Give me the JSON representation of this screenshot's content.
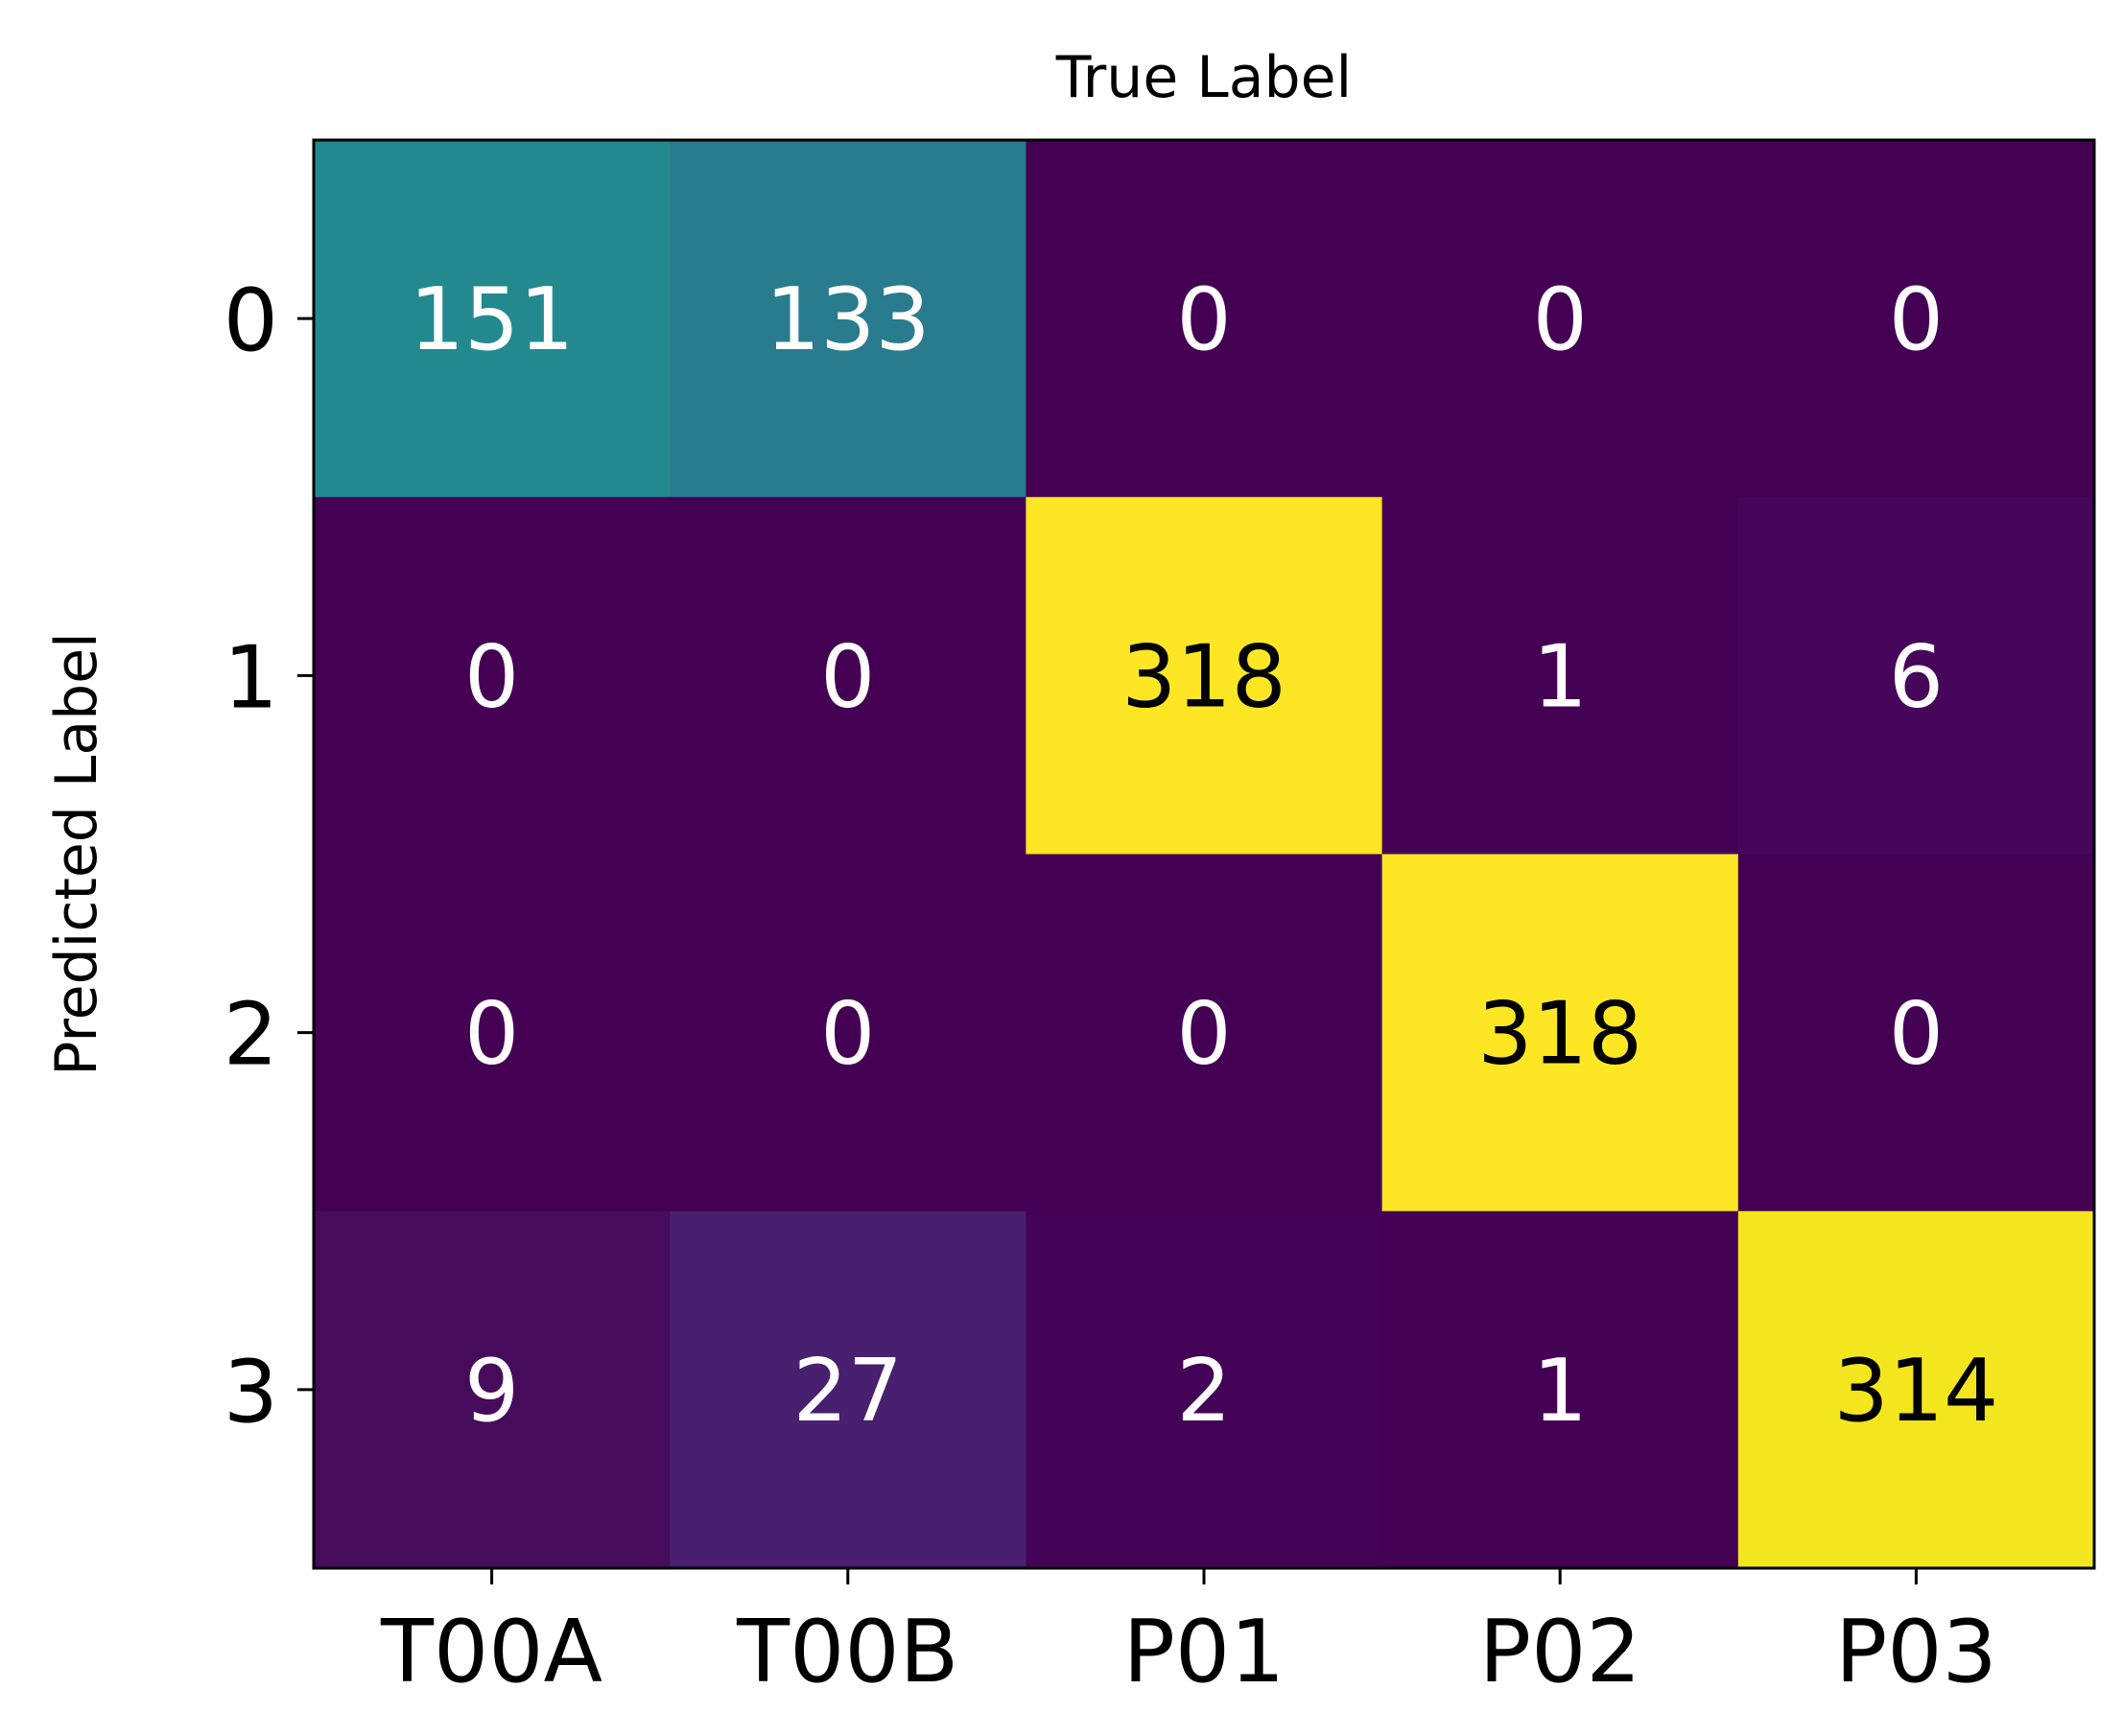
{
  "chart_data": {
    "type": "heatmap",
    "title": "True Label",
    "xlabel": "",
    "ylabel": "Predicted Label",
    "x_categories": [
      "T00A",
      "T00B",
      "P01",
      "P02",
      "P03"
    ],
    "y_categories": [
      "0",
      "1",
      "2",
      "3"
    ],
    "values": [
      [
        151,
        133,
        0,
        0,
        0
      ],
      [
        0,
        0,
        318,
        1,
        6
      ],
      [
        0,
        0,
        0,
        318,
        0
      ],
      [
        9,
        27,
        2,
        1,
        314
      ]
    ],
    "cell_colors": [
      [
        "#23898e",
        "#297b8e",
        "#440154",
        "#440154",
        "#440154"
      ],
      [
        "#440154",
        "#440154",
        "#fde725",
        "#440154",
        "#46075a"
      ],
      [
        "#440154",
        "#440154",
        "#440154",
        "#fde725",
        "#440154"
      ],
      [
        "#470b5c",
        "#48206f",
        "#440256",
        "#440154",
        "#f4e61e"
      ]
    ],
    "text_colors": [
      [
        "#ffffff",
        "#ffffff",
        "#ffffff",
        "#ffffff",
        "#ffffff"
      ],
      [
        "#ffffff",
        "#ffffff",
        "#000000",
        "#ffffff",
        "#ffffff"
      ],
      [
        "#ffffff",
        "#ffffff",
        "#ffffff",
        "#000000",
        "#ffffff"
      ],
      [
        "#ffffff",
        "#ffffff",
        "#ffffff",
        "#ffffff",
        "#000000"
      ]
    ],
    "colormap": "viridis",
    "grid": false,
    "legend": "none"
  }
}
